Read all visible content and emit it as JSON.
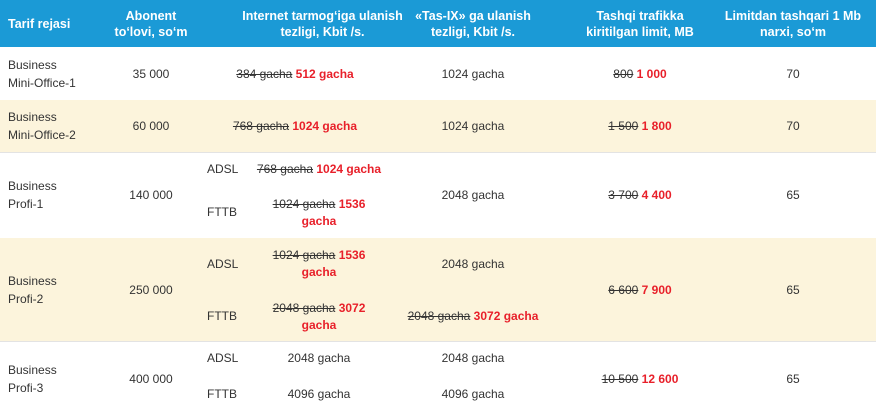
{
  "headers": {
    "tarif": "Tarif rejasi",
    "abonent": "Abonent\nto‘lovi, so‘m",
    "speed": "Internet tarmog‘iga ulanish\ntezligi, Kbit /s.",
    "tasix": "«Tas-IX» ga ulanish\ntezligi, Kbit /s.",
    "limit": "Tashqi trafikka\nkiritilgan limit, MB",
    "price": "Limitdan tashqari 1 Mb\nnarxi, so‘m"
  },
  "rows": [
    {
      "name1": "Business",
      "name2": "Mini-Office-1",
      "fee": "35 000",
      "speed_old": "384 gacha",
      "speed_new": "512 gacha",
      "tasix": "1024 gacha",
      "limit_old": "800",
      "limit_new": "1 000",
      "price": "70"
    },
    {
      "name1": "Business",
      "name2": "Mini-Office-2",
      "fee": "60 000",
      "speed_old": "768 gacha",
      "speed_new": "1024 gacha",
      "tasix": "1024 gacha",
      "limit_old": "1 500",
      "limit_new": "1 800",
      "price": "70"
    },
    {
      "name1": "Business",
      "name2": "Profi-1",
      "fee": "140 000",
      "adsl_label": "ADSL",
      "adsl_old": "768 gacha",
      "adsl_new": "1024 gacha",
      "fttb_label": "FTTB",
      "fttb_old": "1024 gacha",
      "fttb_new1": "1536",
      "fttb_new2": "gacha",
      "tasix": "2048 gacha",
      "limit_old": "3 700",
      "limit_new": "4 400",
      "price": "65"
    },
    {
      "name1": "Business",
      "name2": "Profi-2",
      "fee": "250 000",
      "adsl_label": "ADSL",
      "adsl_old": "1024 gacha",
      "adsl_new1": "1536",
      "adsl_new2": "gacha",
      "fttb_label": "FTTB",
      "fttb_old": "2048 gacha",
      "fttb_new1": "3072",
      "fttb_new2": "gacha",
      "tasix_adsl": "2048 gacha",
      "tasix_fttb_old": "2048 gacha",
      "tasix_fttb_new": "3072 gacha",
      "limit_old": "6 600",
      "limit_new": "7 900",
      "price": "65"
    },
    {
      "name1": "Business",
      "name2": "Profi-3",
      "fee": "400 000",
      "adsl_label": "ADSL",
      "adsl_speed": "2048 gacha",
      "fttb_label": "FTTB",
      "fttb_speed": "4096 gacha",
      "tasix_adsl": "2048 gacha",
      "tasix_fttb": "4096 gacha",
      "limit_old": "10 500",
      "limit_new": "12 600",
      "price": "65"
    }
  ]
}
